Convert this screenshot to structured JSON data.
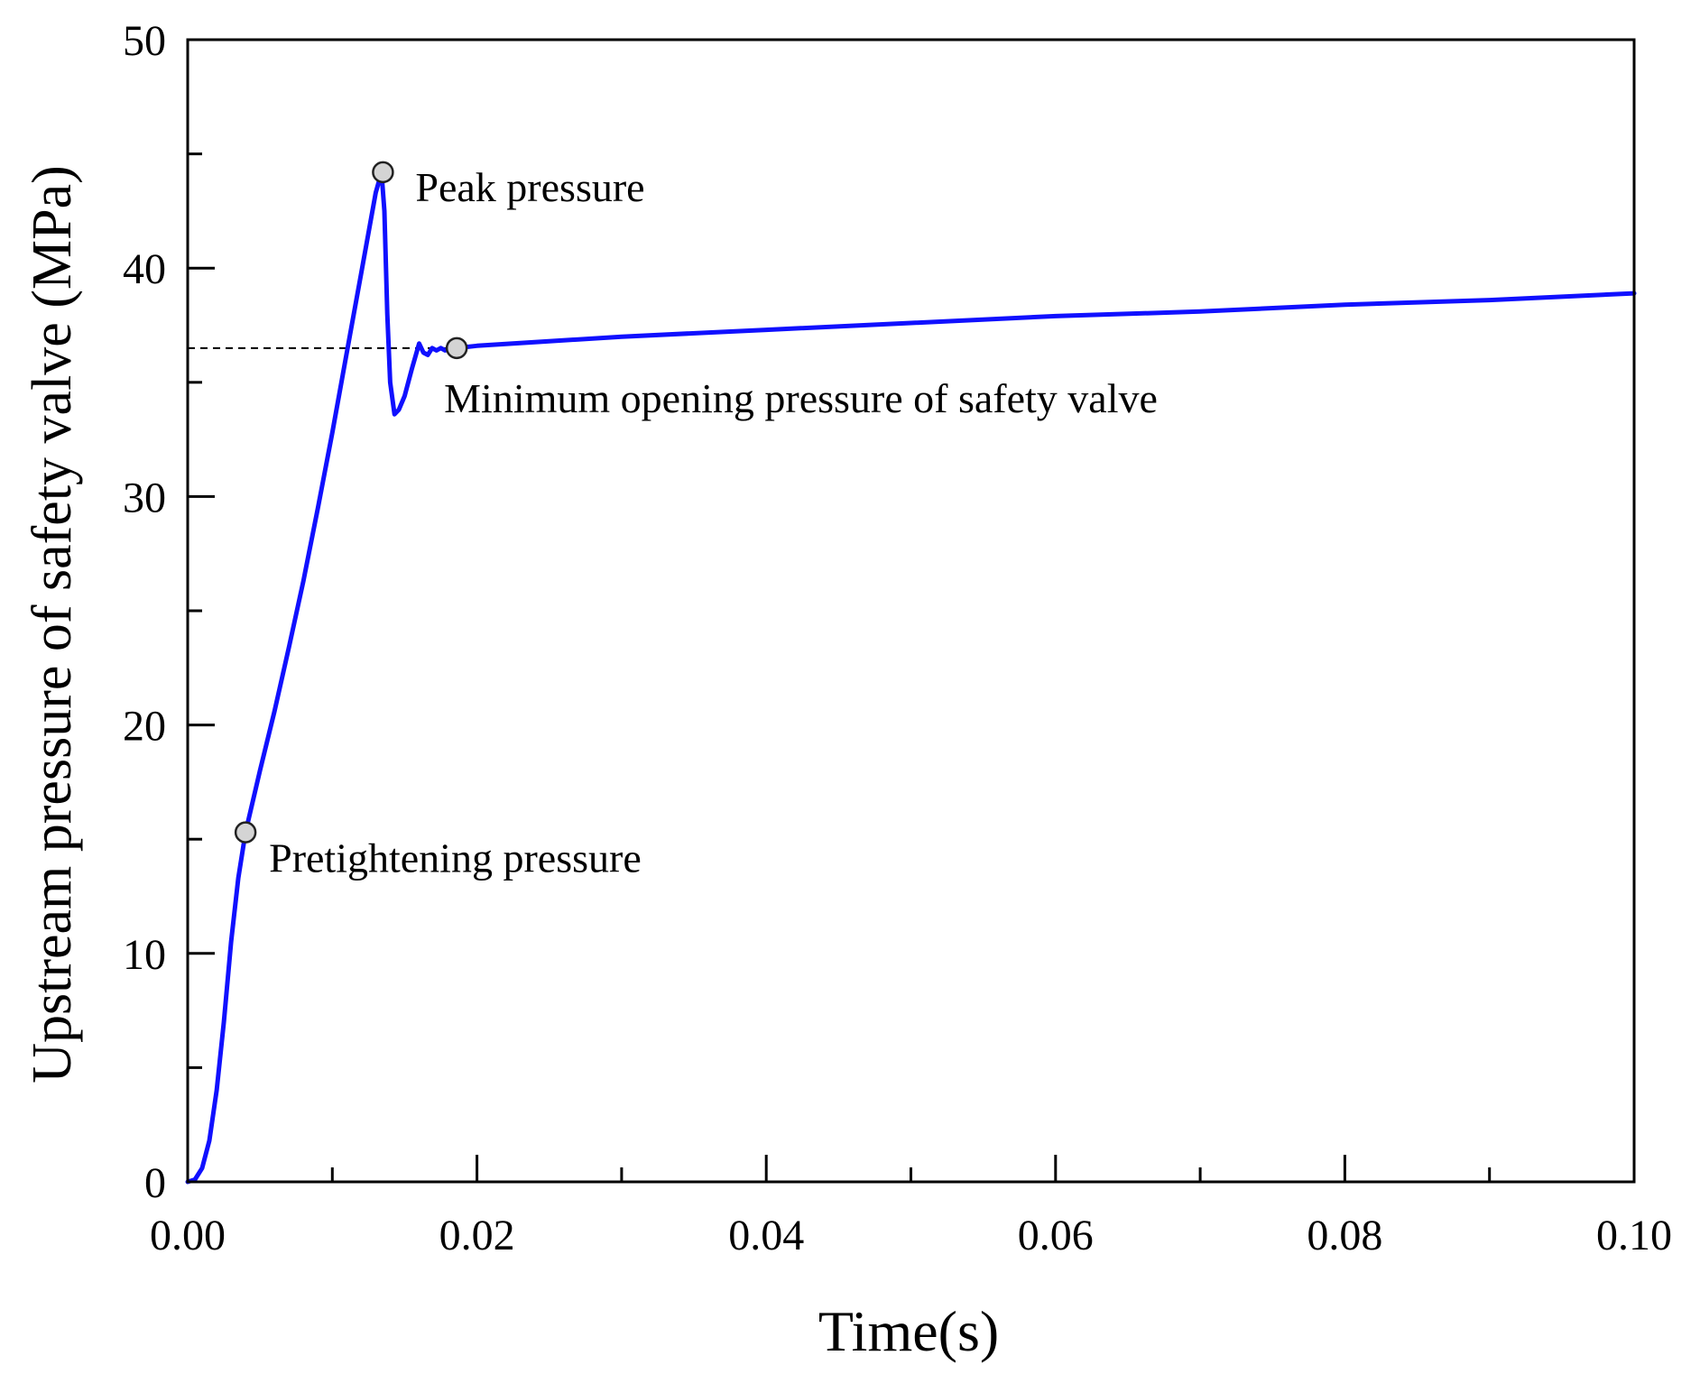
{
  "chart_data": {
    "type": "line",
    "title": "",
    "xlabel": "Time(s)",
    "ylabel": "Upstream pressure of safety valve (MPa)",
    "xlim": [
      0.0,
      0.1
    ],
    "ylim": [
      0,
      50
    ],
    "x_ticks": [
      "0.00",
      "0.02",
      "0.04",
      "0.06",
      "0.08",
      "0.10"
    ],
    "x_tick_values": [
      0.0,
      0.02,
      0.04,
      0.06,
      0.08,
      0.1
    ],
    "x_minor_tick_values": [
      0.01,
      0.03,
      0.05,
      0.07,
      0.09
    ],
    "y_ticks": [
      "0",
      "10",
      "20",
      "30",
      "40",
      "50"
    ],
    "y_tick_values": [
      0,
      10,
      20,
      30,
      40,
      50
    ],
    "y_minor_tick_values": [
      5,
      15,
      25,
      35,
      45
    ],
    "grid": false,
    "series": [
      {
        "name": "Upstream pressure",
        "color": "#1010ff",
        "x": [
          0.0,
          0.0005,
          0.001,
          0.0015,
          0.002,
          0.0025,
          0.003,
          0.0035,
          0.004,
          0.005,
          0.006,
          0.007,
          0.008,
          0.009,
          0.01,
          0.011,
          0.012,
          0.013,
          0.0134,
          0.0136,
          0.0138,
          0.014,
          0.0143,
          0.0146,
          0.015,
          0.0155,
          0.016,
          0.0163,
          0.0166,
          0.0169,
          0.0172,
          0.0175,
          0.0178,
          0.0182,
          0.0186,
          0.02,
          0.03,
          0.04,
          0.05,
          0.06,
          0.07,
          0.08,
          0.09,
          0.1
        ],
        "y": [
          0.0,
          0.1,
          0.6,
          1.8,
          4.0,
          7.0,
          10.5,
          13.3,
          15.3,
          18.0,
          20.6,
          23.4,
          26.3,
          29.5,
          32.8,
          36.3,
          39.8,
          43.3,
          44.2,
          42.5,
          38.0,
          35.0,
          33.6,
          33.8,
          34.4,
          35.6,
          36.7,
          36.3,
          36.2,
          36.5,
          36.4,
          36.5,
          36.4,
          36.5,
          36.5,
          36.6,
          37.0,
          37.3,
          37.6,
          37.9,
          38.1,
          38.4,
          38.6,
          38.9
        ]
      }
    ],
    "reference_line": {
      "y": 36.5,
      "x_start": 0.0,
      "x_end": 0.0186,
      "style": "dashed"
    },
    "annotations": [
      {
        "text": "Peak pressure",
        "x": 0.0135,
        "y": 44.2
      },
      {
        "text": "Minimum opening pressure of safety valve",
        "x": 0.0186,
        "y": 36.5
      },
      {
        "text": "Pretightening pressure",
        "x": 0.004,
        "y": 15.3
      }
    ]
  }
}
